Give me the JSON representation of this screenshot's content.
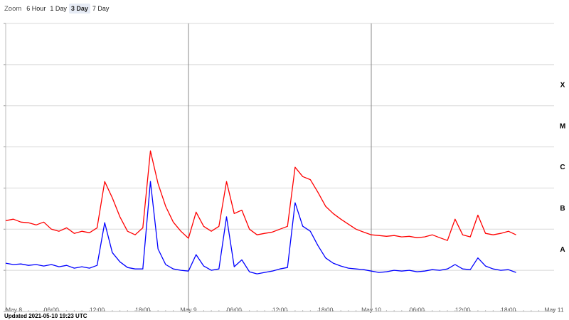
{
  "zoom": {
    "label": "Zoom",
    "options": [
      "6 Hour",
      "1 Day",
      "3 Day",
      "7 Day"
    ],
    "selected": 2
  },
  "updated": "Updated 2021-05-10 19:23 UTC",
  "chart_data": {
    "type": "line",
    "log_scale_y": true,
    "grid": true,
    "xlim": [
      0,
      72
    ],
    "xticks": [
      {
        "value": 0,
        "label": "May 8"
      },
      {
        "value": 6,
        "label": "06:00"
      },
      {
        "value": 12,
        "label": "12:00"
      },
      {
        "value": 18,
        "label": "18:00"
      },
      {
        "value": 24,
        "label": "May 9"
      },
      {
        "value": 30,
        "label": "06:00"
      },
      {
        "value": 36,
        "label": "12:00"
      },
      {
        "value": 42,
        "label": "18:00"
      },
      {
        "value": 48,
        "label": "May 10"
      },
      {
        "value": 54,
        "label": "06:00"
      },
      {
        "value": 60,
        "label": "12:00"
      },
      {
        "value": 66,
        "label": "18:00"
      },
      {
        "value": 72,
        "label": "May 11"
      }
    ],
    "ylim": [
      1e-09,
      0.01
    ],
    "yticks": [
      1e-09,
      1e-08,
      1e-07,
      1e-06,
      1e-05,
      0.0001,
      0.001,
      0.01
    ],
    "flare_classes": [
      {
        "label": "A",
        "value": 1e-08
      },
      {
        "label": "B",
        "value": 1e-07
      },
      {
        "label": "C",
        "value": 1e-06
      },
      {
        "label": "M",
        "value": 1e-05
      },
      {
        "label": "X",
        "value": 0.0001
      }
    ],
    "x": [
      0,
      1,
      2,
      3,
      4,
      5,
      6,
      7,
      8,
      9,
      10,
      11,
      12,
      13,
      14,
      15,
      16,
      17,
      18,
      19,
      20,
      21,
      22,
      23,
      24,
      25,
      26,
      27,
      28,
      29,
      30,
      31,
      32,
      33,
      34,
      35,
      36,
      37,
      38,
      39,
      40,
      41,
      42,
      43,
      44,
      45,
      46,
      47,
      48,
      49,
      50,
      51,
      52,
      53,
      54,
      55,
      56,
      57,
      58,
      59,
      60,
      61,
      62,
      63,
      64,
      65,
      66,
      67
    ],
    "series": [
      {
        "color": "#ff0000",
        "values": [
          1.61e-07,
          1.75e-07,
          1.49e-07,
          1.43e-07,
          1.27e-07,
          1.49e-07,
          1e-07,
          8.9e-08,
          1.08e-07,
          7.9e-08,
          8.9e-08,
          8.2e-08,
          1.08e-07,
          1.44e-06,
          5.8e-07,
          2e-07,
          8.9e-08,
          7.3e-08,
          1.08e-07,
          8e-06,
          1.28e-06,
          3.6e-07,
          1.49e-07,
          8.9e-08,
          6e-08,
          2.6e-07,
          1.17e-07,
          8.9e-08,
          1.17e-07,
          1.44e-06,
          2.4e-07,
          2.9e-07,
          1e-07,
          7.3e-08,
          7.9e-08,
          8.5e-08,
          1e-07,
          1.17e-07,
          3.2e-06,
          1.9e-06,
          1.6e-06,
          7.9e-07,
          3.6e-07,
          2.4e-07,
          1.75e-07,
          1.32e-07,
          1e-07,
          8.5e-08,
          7.3e-08,
          7e-08,
          6.7e-08,
          7e-08,
          6.5e-08,
          6.7e-08,
          6.2e-08,
          6.5e-08,
          7.3e-08,
          6.2e-08,
          5.3e-08,
          1.75e-07,
          7.3e-08,
          6.5e-08,
          2.2e-07,
          7.9e-08,
          7.3e-08,
          7.9e-08,
          8.9e-08,
          7.3e-08
        ]
      },
      {
        "color": "#0000ff",
        "values": [
          1.49e-08,
          1.38e-08,
          1.43e-08,
          1.32e-08,
          1.38e-08,
          1.27e-08,
          1.38e-08,
          1.22e-08,
          1.32e-08,
          1.13e-08,
          1.22e-08,
          1.13e-08,
          1.32e-08,
          1.44e-07,
          2.7e-08,
          1.61e-08,
          1.17e-08,
          1.08e-08,
          1.08e-08,
          1.45e-06,
          3.3e-08,
          1.38e-08,
          1.08e-08,
          1e-08,
          9.6e-09,
          2.4e-08,
          1.27e-08,
          1e-08,
          1.08e-08,
          2e-07,
          1.22e-08,
          1.8e-08,
          9.2e-09,
          8.2e-09,
          8.9e-09,
          9.6e-09,
          1.08e-08,
          1.17e-08,
          4.4e-07,
          1.18e-07,
          8.9e-08,
          4e-08,
          2e-08,
          1.49e-08,
          1.27e-08,
          1.13e-08,
          1.08e-08,
          1.04e-08,
          9.6e-09,
          8.9e-09,
          9.2e-09,
          1e-08,
          9.6e-09,
          1e-08,
          9.2e-09,
          9.6e-09,
          1.04e-08,
          1e-08,
          1.08e-08,
          1.38e-08,
          1.08e-08,
          1.04e-08,
          2e-08,
          1.27e-08,
          1.08e-08,
          1e-08,
          1.04e-08,
          8.9e-09
        ]
      }
    ]
  }
}
